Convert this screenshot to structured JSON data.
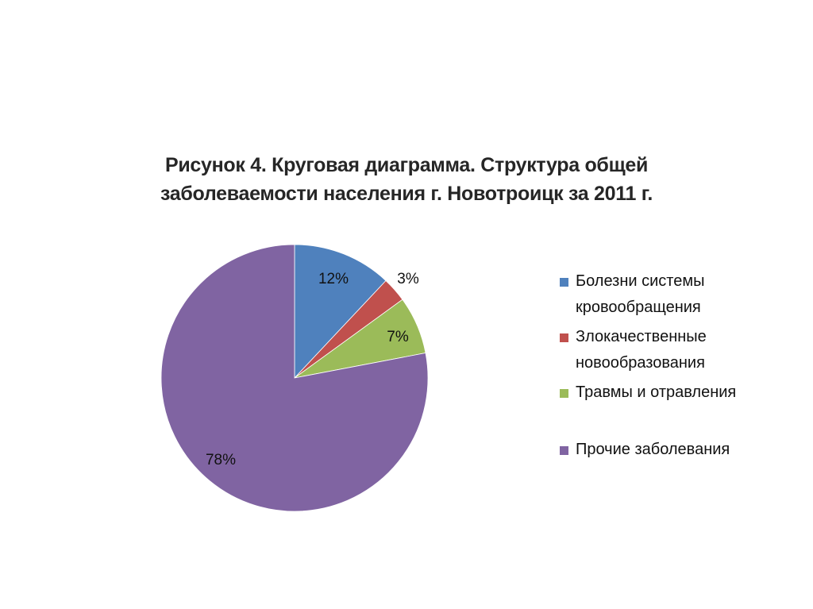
{
  "chart_data": {
    "type": "pie",
    "title_line1": "Рисунок 4. Круговая диаграмма. Структура общей",
    "title_line2": "заболеваемости населения г. Новотроицк за 2011 г.",
    "legend_position": "right",
    "slices": [
      {
        "name": "Болезни системы кровообращения",
        "value": 12,
        "label": "12%",
        "color": "#4F81BD"
      },
      {
        "name": "Злокачественные новообразования",
        "value": 3,
        "label": "3%",
        "color": "#C0504D"
      },
      {
        "name": "Травмы и отравления",
        "value": 7,
        "label": "7%",
        "color": "#9BBB59"
      },
      {
        "name": "Прочие заболевания",
        "value": 78,
        "label": "78%",
        "color": "#8064A2"
      }
    ]
  },
  "legend": {
    "items": [
      "Болезни системы\nкровообращения",
      "Злокачественные\nновообразования",
      "Травмы и отравления",
      "Прочие заболевания"
    ]
  }
}
